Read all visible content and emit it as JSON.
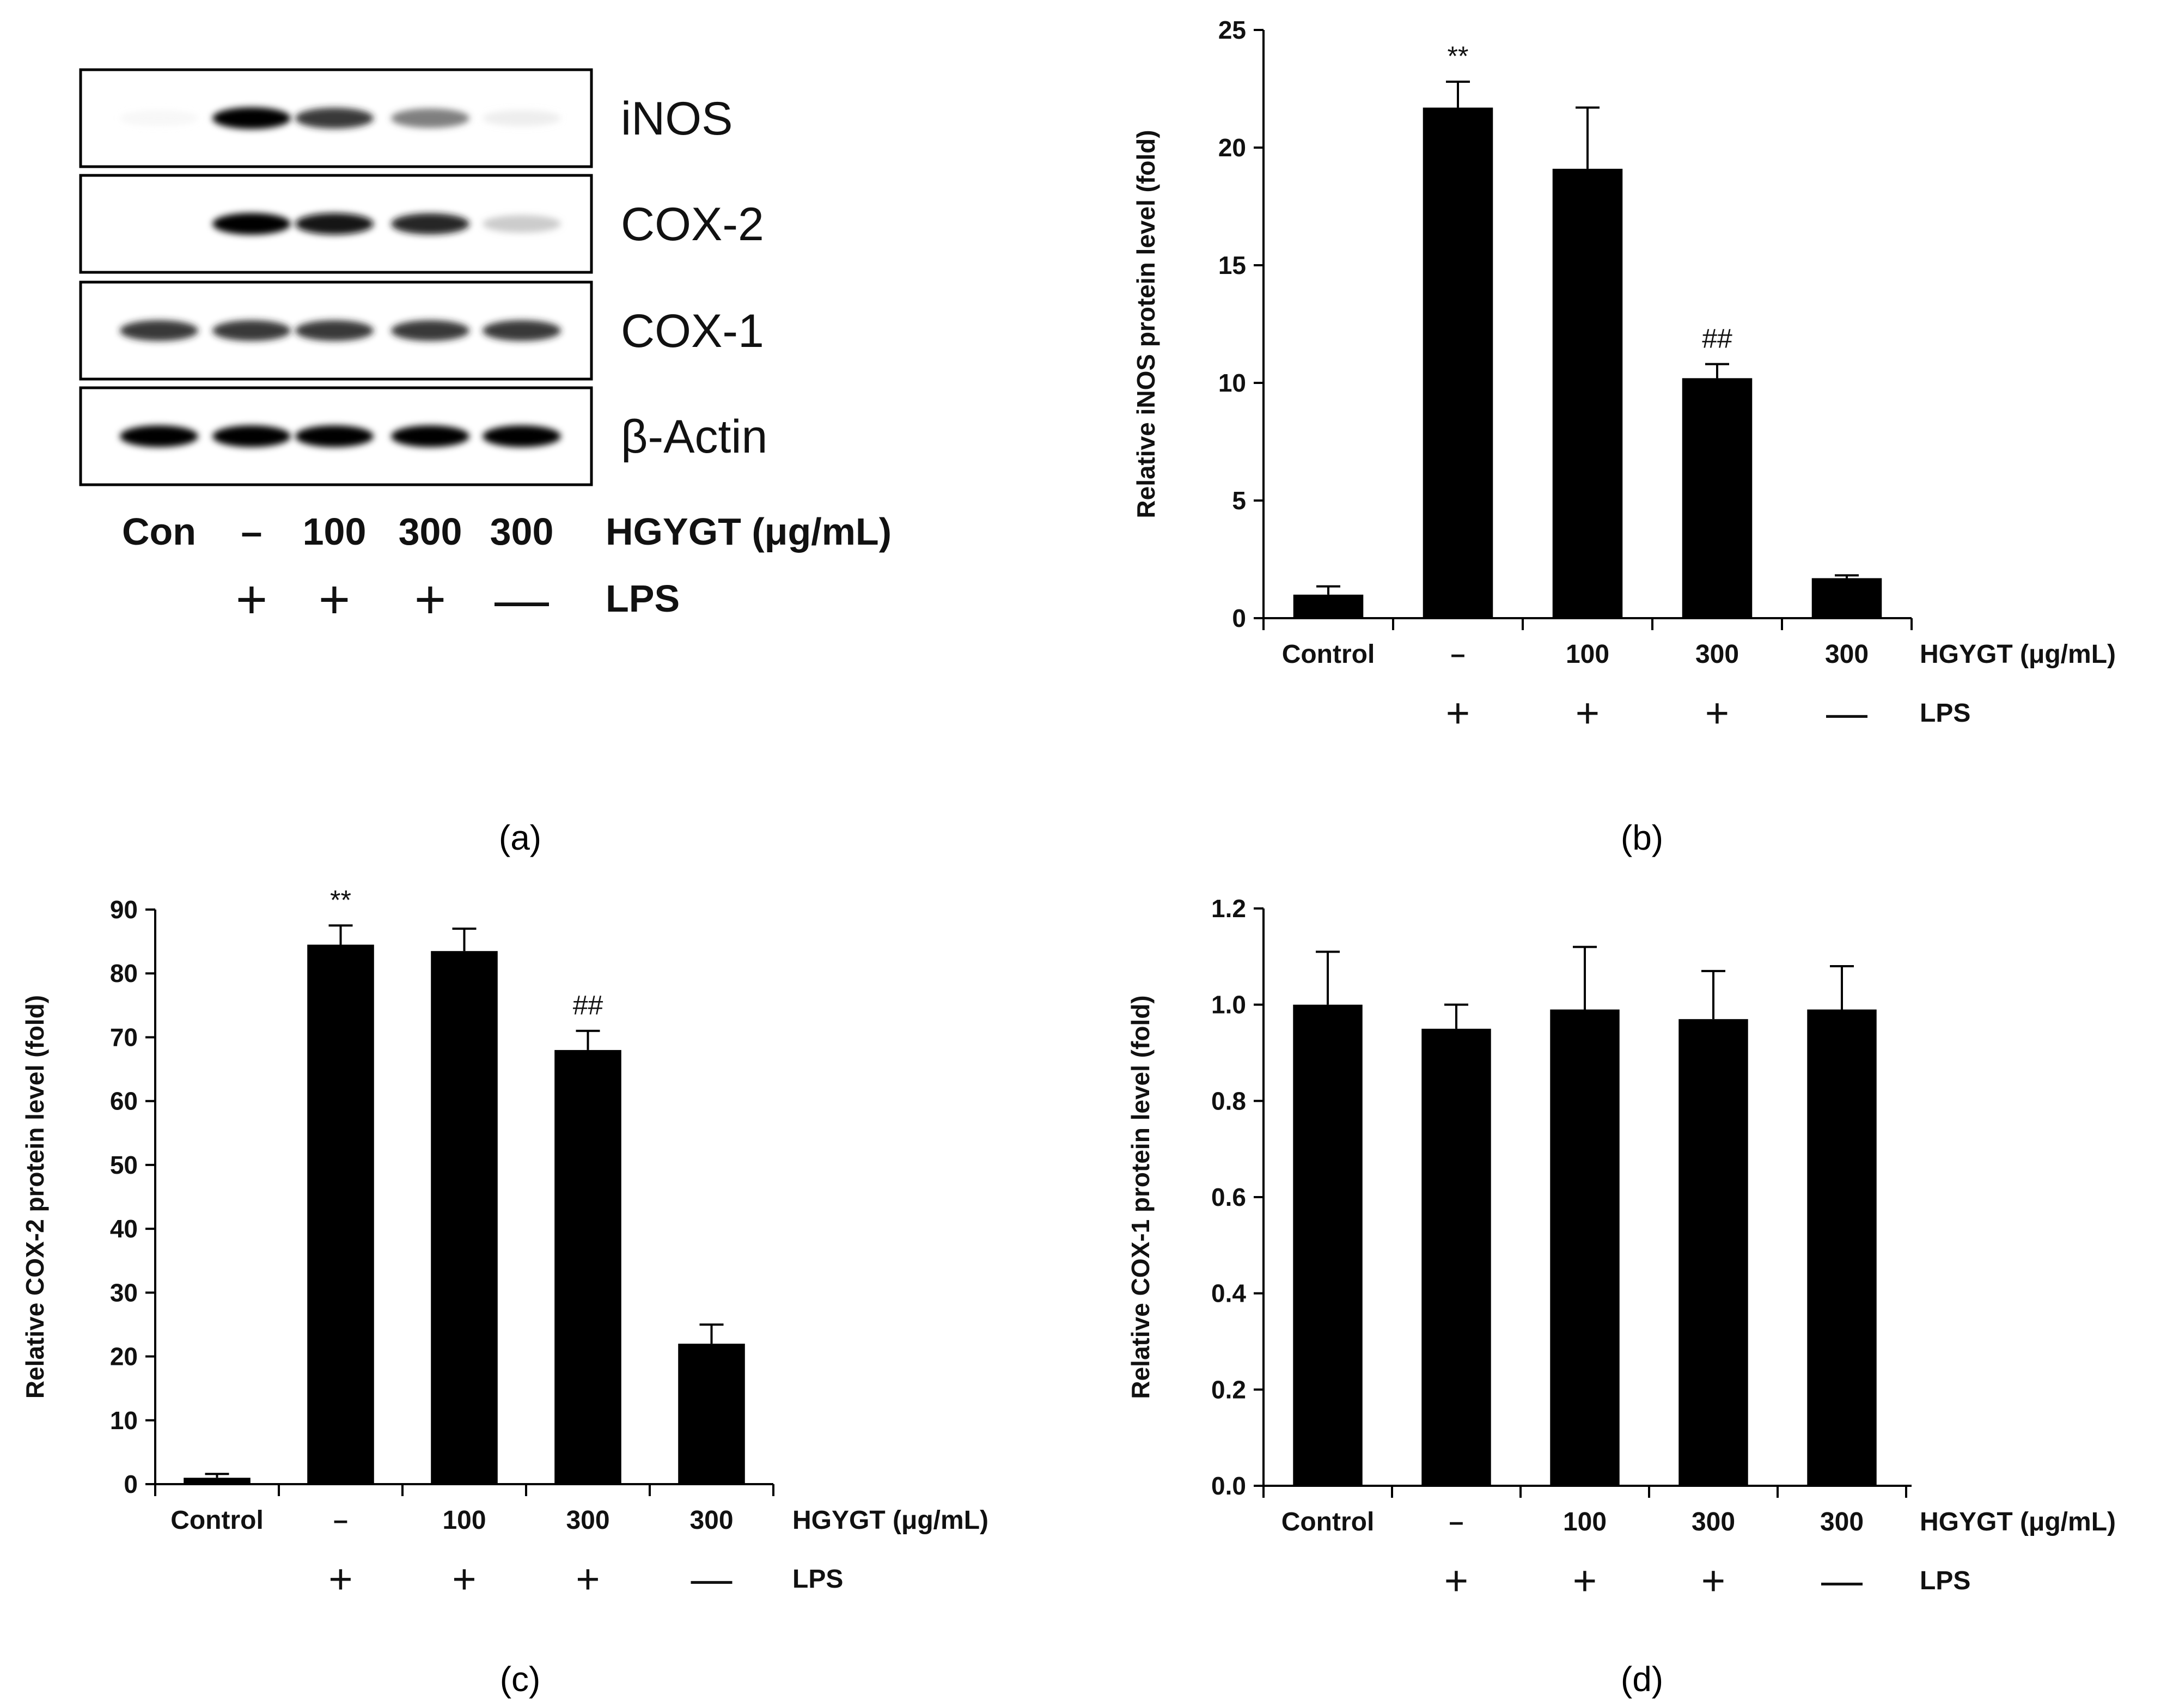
{
  "figure": {
    "captions": [
      "(a)",
      "(b)",
      "(c)",
      "(d)"
    ]
  },
  "blot": {
    "proteins": [
      "iNOS",
      "COX-2",
      "COX-1",
      "β-Actin"
    ],
    "lanes": [
      "Con",
      "–",
      "100",
      "300",
      "300"
    ],
    "lps_row": [
      "",
      "+",
      "+",
      "+",
      "—"
    ],
    "treatment_label": "HGYGT (μg/mL)",
    "lps_label": "LPS",
    "band_intensity": [
      [
        0.08,
        1.0,
        0.85,
        0.65,
        0.15
      ],
      [
        0.0,
        1.0,
        0.95,
        0.9,
        0.35
      ],
      [
        0.85,
        0.85,
        0.85,
        0.85,
        0.85
      ],
      [
        1.0,
        1.0,
        1.0,
        1.0,
        1.0
      ]
    ]
  },
  "chart_data": [
    {
      "type": "bar",
      "panel": "b",
      "title": "",
      "xlabel": "HGYGT (μg/mL)",
      "xlabel2": "LPS",
      "ylabel": "Relative iNOS protein level (fold)",
      "categories": [
        "Control",
        "–",
        "100",
        "300",
        "300"
      ],
      "lps": [
        "",
        "+",
        "+",
        "+",
        "—"
      ],
      "values": [
        1.0,
        21.7,
        19.1,
        10.2,
        1.7
      ],
      "errors": [
        0.35,
        1.1,
        2.6,
        0.6,
        0.12
      ],
      "annotations": [
        "",
        "**",
        "",
        "##",
        ""
      ],
      "ylim": [
        0,
        25
      ],
      "yticks": [
        0,
        5,
        10,
        15,
        20,
        25
      ],
      "ytick_labels": [
        "0",
        "5",
        "10",
        "15",
        "20",
        "25"
      ],
      "grid": false,
      "legend": "none"
    },
    {
      "type": "bar",
      "panel": "c",
      "title": "",
      "xlabel": "HGYGT (μg/mL)",
      "xlabel2": "LPS",
      "ylabel": "Relative COX-2 protein level (fold)",
      "categories": [
        "Control",
        "–",
        "100",
        "300",
        "300"
      ],
      "lps": [
        "",
        "+",
        "+",
        "+",
        "—"
      ],
      "values": [
        1.0,
        84.5,
        83.5,
        68.0,
        22.0
      ],
      "errors": [
        0.6,
        3.0,
        3.5,
        3.0,
        3.0
      ],
      "annotations": [
        "",
        "**",
        "",
        "##",
        ""
      ],
      "ylim": [
        0,
        90
      ],
      "yticks": [
        0,
        10,
        20,
        30,
        40,
        50,
        60,
        70,
        80,
        90
      ],
      "ytick_labels": [
        "0",
        "10",
        "20",
        "30",
        "40",
        "50",
        "60",
        "70",
        "80",
        "90"
      ],
      "grid": false,
      "legend": "none"
    },
    {
      "type": "bar",
      "panel": "d",
      "title": "",
      "xlabel": "HGYGT (μg/mL)",
      "xlabel2": "LPS",
      "ylabel": "Relative COX-1 protein level (fold)",
      "categories": [
        "Control",
        "–",
        "100",
        "300",
        "300"
      ],
      "lps": [
        "",
        "+",
        "+",
        "+",
        "—"
      ],
      "values": [
        1.0,
        0.95,
        0.99,
        0.97,
        0.99
      ],
      "errors": [
        0.11,
        0.05,
        0.13,
        0.1,
        0.09
      ],
      "annotations": [
        "",
        "",
        "",
        "",
        ""
      ],
      "ylim": [
        0,
        1.2
      ],
      "yticks": [
        0,
        0.2,
        0.4,
        0.6,
        0.8,
        1.0,
        1.2
      ],
      "ytick_labels": [
        "0.0",
        "0.2",
        "0.4",
        "0.6",
        "0.8",
        "1.0",
        "1.2"
      ],
      "grid": false,
      "legend": "none"
    }
  ]
}
